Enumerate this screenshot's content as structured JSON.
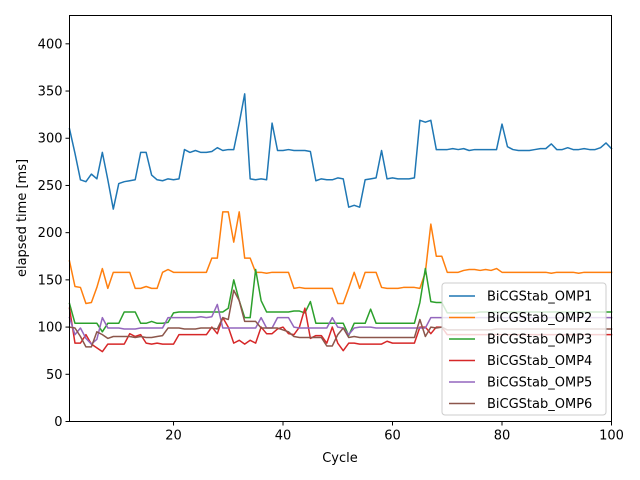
{
  "chart_data": {
    "type": "line",
    "xlabel": "Cycle",
    "ylabel": "elapsed time [ms]",
    "xlim": [
      1,
      100
    ],
    "ylim": [
      0,
      430
    ],
    "xticks": [
      20,
      40,
      60,
      80,
      100
    ],
    "yticks": [
      0,
      50,
      100,
      150,
      200,
      250,
      300,
      350,
      400
    ],
    "grid": false,
    "legend_position": "lower-right",
    "x": [
      1,
      2,
      3,
      4,
      5,
      6,
      7,
      8,
      9,
      10,
      11,
      12,
      13,
      14,
      15,
      16,
      17,
      18,
      19,
      20,
      21,
      22,
      23,
      24,
      25,
      26,
      27,
      28,
      29,
      30,
      31,
      32,
      33,
      34,
      35,
      36,
      37,
      38,
      39,
      40,
      41,
      42,
      43,
      44,
      45,
      46,
      47,
      48,
      49,
      50,
      51,
      52,
      53,
      54,
      55,
      56,
      57,
      58,
      59,
      60,
      61,
      62,
      63,
      64,
      65,
      66,
      67,
      68,
      69,
      70,
      71,
      72,
      73,
      74,
      75,
      76,
      77,
      78,
      79,
      80,
      81,
      82,
      83,
      84,
      85,
      86,
      87,
      88,
      89,
      90,
      91,
      92,
      93,
      94,
      95,
      96,
      97,
      98,
      99,
      100
    ],
    "series": [
      {
        "name": "BiCGStab_OMP1",
        "color": "#1f77b4",
        "values": [
          310,
          284,
          256,
          254,
          262,
          257,
          285,
          256,
          225,
          252,
          254,
          255,
          256,
          285,
          285,
          261,
          256,
          255,
          257,
          256,
          257,
          288,
          285,
          287,
          285,
          285,
          286,
          290,
          287,
          288,
          288,
          316,
          347,
          257,
          256,
          257,
          256,
          316,
          287,
          287,
          288,
          287,
          287,
          287,
          286,
          255,
          257,
          256,
          256,
          258,
          257,
          227,
          229,
          227,
          256,
          257,
          258,
          287,
          257,
          258,
          257,
          257,
          257,
          258,
          319,
          317,
          319,
          288,
          288,
          288,
          289,
          288,
          289,
          287,
          288,
          288,
          288,
          288,
          288,
          315,
          291,
          288,
          287,
          287,
          287,
          288,
          289,
          289,
          294,
          288,
          288,
          290,
          288,
          288,
          289,
          288,
          288,
          290,
          295,
          289
        ]
      },
      {
        "name": "BiCGStab_OMP2",
        "color": "#ff7f0e",
        "values": [
          170,
          143,
          142,
          125,
          126,
          142,
          162,
          141,
          158,
          158,
          158,
          158,
          141,
          141,
          143,
          141,
          141,
          158,
          161,
          158,
          158,
          158,
          158,
          158,
          158,
          158,
          173,
          173,
          222,
          222,
          190,
          222,
          173,
          173,
          158,
          158,
          157,
          158,
          158,
          158,
          158,
          141,
          142,
          141,
          141,
          141,
          141,
          141,
          141,
          125,
          125,
          141,
          158,
          141,
          158,
          158,
          158,
          142,
          141,
          141,
          141,
          142,
          142,
          142,
          141,
          158,
          209,
          175,
          175,
          158,
          158,
          158,
          160,
          161,
          161,
          160,
          161,
          160,
          162,
          158,
          158,
          158,
          158,
          158,
          158,
          158,
          158,
          158,
          157,
          158,
          158,
          158,
          158,
          157,
          158,
          158,
          158,
          158,
          158,
          158
        ]
      },
      {
        "name": "BiCGStab_OMP3",
        "color": "#2ca02c",
        "values": [
          125,
          104,
          104,
          104,
          104,
          104,
          95,
          104,
          104,
          104,
          116,
          116,
          116,
          104,
          104,
          106,
          104,
          104,
          105,
          115,
          116,
          116,
          116,
          116,
          116,
          116,
          116,
          116,
          116,
          120,
          150,
          128,
          110,
          110,
          161,
          128,
          116,
          116,
          116,
          116,
          116,
          117,
          117,
          115,
          127,
          104,
          104,
          104,
          104,
          104,
          104,
          91,
          104,
          104,
          104,
          119,
          104,
          104,
          104,
          104,
          104,
          104,
          104,
          104,
          126,
          162,
          127,
          126,
          126,
          115,
          115,
          115,
          115,
          115,
          115,
          116,
          116,
          116,
          116,
          116,
          116,
          116,
          116,
          116,
          116,
          116,
          116,
          116,
          116,
          116,
          116,
          116,
          116,
          116,
          116,
          116,
          116,
          116,
          116,
          116
        ]
      },
      {
        "name": "BiCGStab_OMP4",
        "color": "#d62728",
        "values": [
          120,
          83,
          83,
          92,
          82,
          78,
          74,
          82,
          82,
          82,
          82,
          93,
          90,
          92,
          83,
          82,
          83,
          82,
          82,
          82,
          92,
          92,
          92,
          92,
          92,
          92,
          100,
          93,
          110,
          100,
          83,
          86,
          82,
          86,
          83,
          100,
          93,
          93,
          98,
          100,
          93,
          92,
          100,
          120,
          88,
          91,
          91,
          83,
          100,
          83,
          75,
          83,
          83,
          82,
          82,
          82,
          82,
          82,
          85,
          83,
          83,
          83,
          83,
          83,
          100,
          100,
          93,
          100,
          100,
          92,
          92,
          92,
          92,
          92,
          92,
          92,
          92,
          92,
          92,
          92,
          92,
          92,
          92,
          92,
          92,
          92,
          92,
          92,
          92,
          92,
          92,
          92,
          92,
          92,
          92,
          92,
          92,
          92,
          92,
          92
        ]
      },
      {
        "name": "BiCGStab_OMP5",
        "color": "#9467bd",
        "values": [
          110,
          92,
          99,
          88,
          82,
          87,
          110,
          99,
          99,
          99,
          98,
          98,
          98,
          99,
          99,
          99,
          99,
          99,
          110,
          110,
          110,
          110,
          110,
          110,
          111,
          110,
          111,
          124,
          99,
          99,
          99,
          99,
          99,
          99,
          99,
          110,
          99,
          99,
          110,
          110,
          110,
          100,
          99,
          99,
          99,
          99,
          99,
          99,
          110,
          100,
          99,
          92,
          99,
          100,
          100,
          100,
          99,
          99,
          99,
          99,
          99,
          99,
          99,
          99,
          99,
          99,
          110,
          110,
          110,
          110,
          110,
          110,
          110,
          110,
          110,
          110,
          110,
          110,
          110,
          110,
          110,
          110,
          110,
          110,
          110,
          110,
          110,
          110,
          110,
          110,
          110,
          110,
          110,
          110,
          110,
          110,
          110,
          110,
          110,
          110
        ]
      },
      {
        "name": "BiCGStab_OMP6",
        "color": "#8c564b",
        "values": [
          100,
          99,
          90,
          79,
          79,
          95,
          92,
          88,
          90,
          90,
          90,
          90,
          89,
          90,
          89,
          89,
          90,
          91,
          99,
          99,
          99,
          98,
          98,
          98,
          99,
          99,
          99,
          98,
          110,
          108,
          139,
          128,
          106,
          106,
          106,
          99,
          99,
          99,
          99,
          97,
          95,
          90,
          89,
          89,
          89,
          89,
          89,
          80,
          80,
          92,
          99,
          89,
          90,
          89,
          89,
          89,
          89,
          89,
          89,
          89,
          89,
          89,
          89,
          89,
          108,
          90,
          100,
          99,
          100,
          97,
          97,
          97,
          97,
          97,
          97,
          97,
          97,
          97,
          98,
          98,
          98,
          98,
          98,
          98,
          98,
          98,
          98,
          98,
          98,
          98,
          98,
          98,
          98,
          98,
          98,
          98,
          98,
          98,
          98,
          98
        ]
      }
    ]
  }
}
